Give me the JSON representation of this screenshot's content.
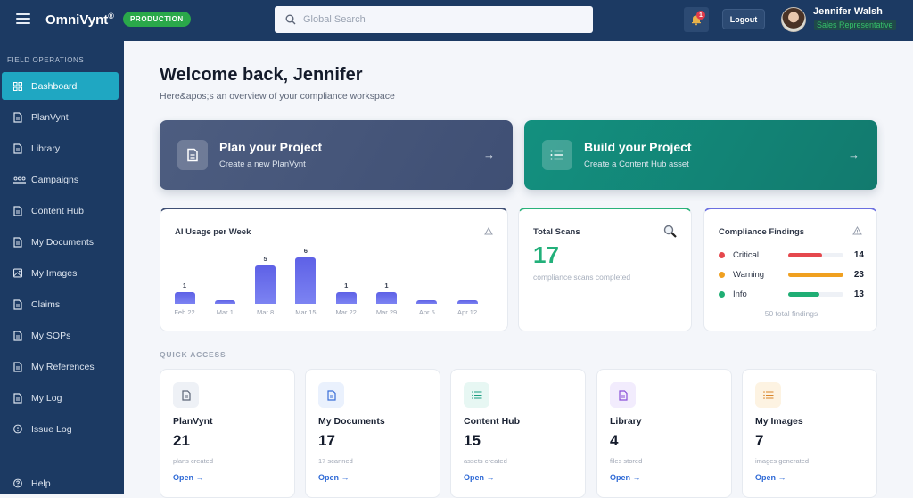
{
  "header": {
    "brand": "OmniVynt",
    "brand_mark": "®",
    "env_badge": "PRODUCTION",
    "search_placeholder": "Global Search",
    "notification_count": "1",
    "logout_label": "Logout",
    "user_name": "Jennifer Walsh",
    "user_role": "Sales Representative"
  },
  "sidebar": {
    "section": "FIELD OPERATIONS",
    "items": [
      {
        "label": "Dashboard",
        "icon": "grid-icon",
        "active": true
      },
      {
        "label": "PlanVynt",
        "icon": "document-icon"
      },
      {
        "label": "Library",
        "icon": "document-icon"
      },
      {
        "label": "Campaigns",
        "icon": "people-icon"
      },
      {
        "label": "Content Hub",
        "icon": "document-icon"
      },
      {
        "label": "My Documents",
        "icon": "document-icon"
      },
      {
        "label": "My Images",
        "icon": "image-icon"
      },
      {
        "label": "Claims",
        "icon": "document-icon"
      },
      {
        "label": "My SOPs",
        "icon": "document-icon"
      },
      {
        "label": "My References",
        "icon": "document-icon"
      },
      {
        "label": "My Log",
        "icon": "document-icon"
      },
      {
        "label": "Issue Log",
        "icon": "alert-circle-icon"
      }
    ],
    "help": "Help"
  },
  "main": {
    "title": "Welcome back, Jennifer",
    "subtitle": "Here&apos;s an overview of your compliance workspace",
    "hero": [
      {
        "title": "Plan your Project",
        "subtitle": "Create a new PlanVynt",
        "arrow": "→"
      },
      {
        "title": "Build your Project",
        "subtitle": "Create a Content Hub asset",
        "arrow": "→"
      }
    ],
    "usage": {
      "title": "AI Usage per Week",
      "weeks": [
        "Feb 22",
        "Mar 1",
        "Mar 8",
        "Mar 15",
        "Mar 22",
        "Mar 29",
        "Apr 5",
        "Apr 12"
      ],
      "values": [
        1,
        0,
        5,
        6,
        1,
        1,
        0,
        0
      ],
      "labels": [
        "1",
        "",
        "5",
        "6",
        "1",
        "1",
        "",
        ""
      ]
    },
    "scans": {
      "title": "Total Scans",
      "value": "17",
      "subtitle": "compliance scans completed"
    },
    "findings": {
      "title": "Compliance Findings",
      "rows": [
        {
          "label": "Critical",
          "count": "14",
          "color": "#e5484d",
          "pct": 62
        },
        {
          "label": "Warning",
          "count": "23",
          "color": "#f0a020",
          "pct": 100
        },
        {
          "label": "Info",
          "count": "13",
          "color": "#1fae74",
          "pct": 57
        }
      ],
      "total": "50 total findings"
    },
    "quick_access": {
      "heading": "QUICK ACCESS",
      "cards": [
        {
          "name": "PlanVynt",
          "value": "21",
          "sub": "plans created",
          "open": "Open →",
          "icon_bg": "#eef1f6",
          "icon_color": "#5d6678"
        },
        {
          "name": "My Documents",
          "value": "17",
          "sub": "17 scanned",
          "open": "Open →",
          "icon_bg": "#eaf1fd",
          "icon_color": "#3a6fd8"
        },
        {
          "name": "Content Hub",
          "value": "15",
          "sub": "assets created",
          "open": "Open →",
          "icon_bg": "#e7f7f3",
          "icon_color": "#1a9c80"
        },
        {
          "name": "Library",
          "value": "4",
          "sub": "files stored",
          "open": "Open →",
          "icon_bg": "#f2ecfd",
          "icon_color": "#8a4fd8"
        },
        {
          "name": "My Images",
          "value": "7",
          "sub": "images generated",
          "open": "Open →",
          "icon_bg": "#fdf3e2",
          "icon_color": "#d9852a"
        }
      ]
    }
  }
}
